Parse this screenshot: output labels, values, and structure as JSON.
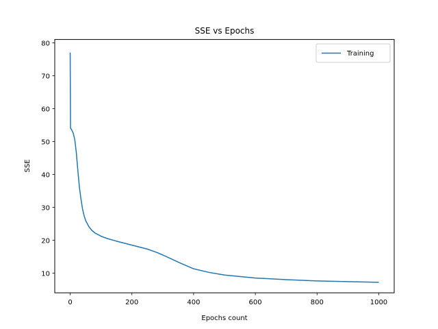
{
  "chart_data": {
    "type": "line",
    "title": "SSE vs Epochs",
    "xlabel": "Epochs count",
    "ylabel": "SSE",
    "xlim": [
      -50,
      1050
    ],
    "ylim": [
      4,
      81
    ],
    "xticks": [
      0,
      200,
      400,
      600,
      800,
      1000
    ],
    "yticks": [
      10,
      20,
      30,
      40,
      50,
      60,
      70,
      80
    ],
    "grid": false,
    "legend_position": "top-right",
    "series": [
      {
        "name": "Training",
        "color": "#1f77b4",
        "x": [
          0,
          1,
          2,
          5,
          10,
          15,
          20,
          25,
          30,
          35,
          40,
          45,
          50,
          60,
          70,
          80,
          100,
          120,
          150,
          200,
          250,
          280,
          300,
          330,
          360,
          400,
          450,
          500,
          600,
          700,
          800,
          900,
          1000
        ],
        "values": [
          77,
          54,
          54,
          53.5,
          52.5,
          50.5,
          46.5,
          41,
          36,
          32.5,
          29.5,
          27.5,
          26,
          24.2,
          23,
          22.2,
          21.2,
          20.5,
          19.7,
          18.5,
          17.3,
          16.3,
          15.5,
          14.2,
          12.9,
          11.3,
          10.2,
          9.4,
          8.5,
          8,
          7.6,
          7.4,
          7.2
        ]
      }
    ]
  }
}
